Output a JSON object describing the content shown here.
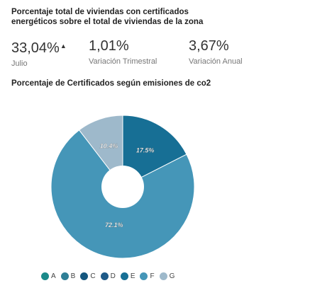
{
  "header": {
    "title": "Porcentaje total de viviendas con certificados energéticos sobre el total de viviendas de la zona"
  },
  "stats": [
    {
      "value": "33,04%",
      "trend": "up",
      "label": "Julio"
    },
    {
      "value": "1,01%",
      "label": "Variación Trimestral"
    },
    {
      "value": "3,67%",
      "label": "Variación Anual"
    }
  ],
  "colors": {
    "A": "#1b8a8a",
    "B": "#2f7f96",
    "C": "#15577f",
    "D": "#1e5a88",
    "E": "#176f95",
    "F": "#4596b8",
    "G": "#9eb9cb"
  },
  "chart_data": {
    "type": "pie",
    "title": "Porcentaje de Certificados según emisiones de co2",
    "categories": [
      "A",
      "B",
      "C",
      "D",
      "E",
      "F",
      "G"
    ],
    "values": [
      0,
      0,
      0,
      0,
      17.5,
      72.1,
      10.4
    ],
    "data_labels": [
      "",
      "",
      "",
      "",
      "17.5%",
      "72.1%",
      "10.4%"
    ],
    "legend_position": "bottom"
  }
}
